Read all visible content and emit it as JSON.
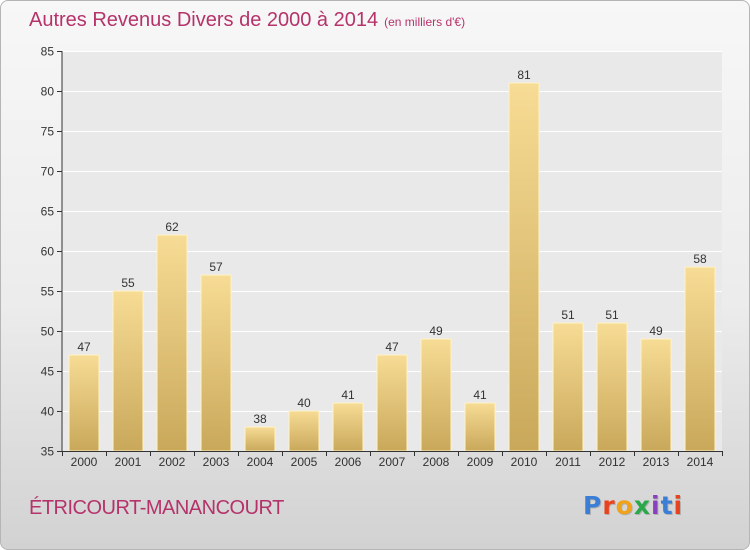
{
  "header": {
    "title": "Autres Revenus Divers de 2000 à 2014",
    "unit": "(en milliers d'€)"
  },
  "footer": {
    "commune": "ÉTRICOURT-MANANCOURT",
    "logo_text": "Proxiti",
    "logo_colors": [
      "#3a7fd5",
      "#e8431f",
      "#f0a21b",
      "#2aa84a",
      "#8a3fbf",
      "#3a7fd5",
      "#e8431f"
    ]
  },
  "chart_data": {
    "type": "bar",
    "categories": [
      "2000",
      "2001",
      "2002",
      "2003",
      "2004",
      "2005",
      "2006",
      "2007",
      "2008",
      "2009",
      "2010",
      "2011",
      "2012",
      "2013",
      "2014"
    ],
    "values": [
      47,
      55,
      62,
      57,
      38,
      40,
      41,
      47,
      49,
      41,
      81,
      51,
      51,
      49,
      58
    ],
    "ylim": [
      35,
      85
    ],
    "yticks": [
      35,
      40,
      45,
      50,
      55,
      60,
      65,
      70,
      75,
      80,
      85
    ],
    "grid": true,
    "bar_color_top": "#f7dc95",
    "bar_color_bottom": "#c9a85a"
  }
}
